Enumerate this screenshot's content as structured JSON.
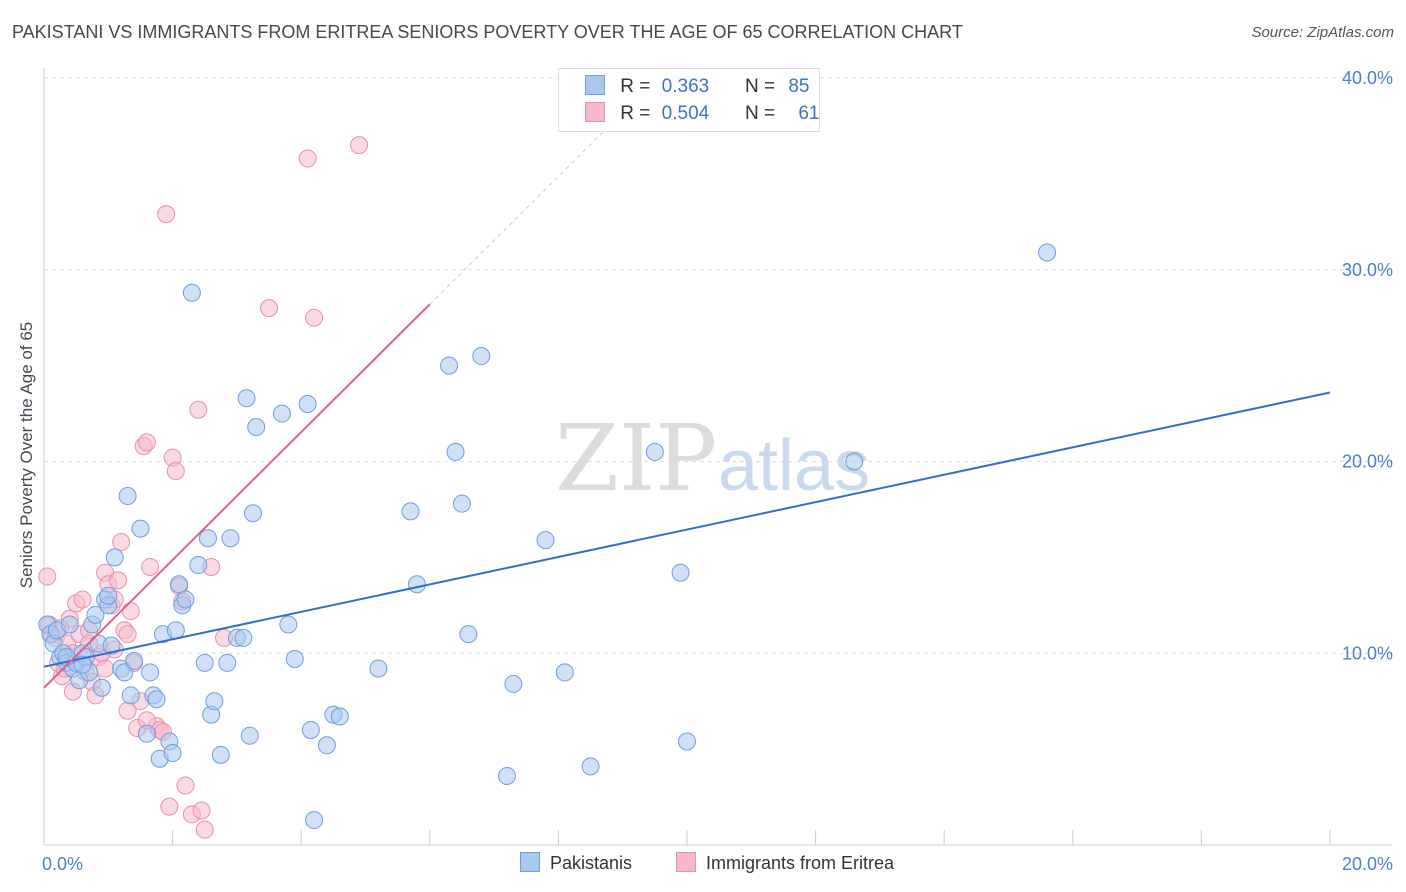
{
  "title": "PAKISTANI VS IMMIGRANTS FROM ERITREA SENIORS POVERTY OVER THE AGE OF 65 CORRELATION CHART",
  "source": "Source: ZipAtlas.com",
  "watermark": {
    "zip": "ZIP",
    "atlas": "atlas"
  },
  "colors": {
    "blue_fill": "#a9c8f0",
    "blue_stroke": "#6d9ee0",
    "blue_line": "#2f6fd0",
    "pink_fill": "#f6b9cc",
    "pink_stroke": "#e890aa",
    "pink_line": "#e0608a",
    "grid": "#dddddd",
    "tick_text": "#4a7fcf"
  },
  "legend": {
    "rows": [
      {
        "r_label": "R =",
        "r_value": "0.363",
        "n_label": "N =",
        "n_value": "85"
      },
      {
        "r_label": "R =",
        "r_value": "0.504",
        "n_label": "N =",
        "n_value": "61"
      }
    ]
  },
  "bottom_legend": {
    "series1": "Pakistanis",
    "series2": "Immigrants from Eritrea"
  },
  "chart_data": {
    "type": "scatter",
    "title": "PAKISTANI VS IMMIGRANTS FROM ERITREA SENIORS POVERTY OVER THE AGE OF 65 CORRELATION CHART",
    "xlabel": "",
    "ylabel": "Seniors Poverty Over the Age of 65",
    "xlim": [
      0,
      20
    ],
    "ylim": [
      0,
      40
    ],
    "x_tick_labels": [
      "0.0%",
      "20.0%"
    ],
    "y_ticks": [
      10,
      20,
      30,
      40
    ],
    "y_tick_labels": [
      "10.0%",
      "20.0%",
      "30.0%",
      "40.0%"
    ],
    "series": [
      {
        "name": "Pakistanis",
        "r": 0.363,
        "n": 85,
        "trend": {
          "x": [
            0,
            20
          ],
          "y": [
            9.3,
            23.6
          ]
        },
        "points": [
          [
            0.05,
            11.5
          ],
          [
            0.1,
            11.0
          ],
          [
            0.15,
            10.5
          ],
          [
            0.2,
            11.2
          ],
          [
            0.25,
            9.8
          ],
          [
            0.3,
            10.0
          ],
          [
            0.35,
            9.5
          ],
          [
            0.4,
            11.5
          ],
          [
            0.45,
            9.2
          ],
          [
            0.5,
            9.5
          ],
          [
            0.55,
            8.6
          ],
          [
            0.6,
            10.0
          ],
          [
            0.65,
            9.8
          ],
          [
            0.7,
            9.0
          ],
          [
            0.75,
            11.5
          ],
          [
            0.8,
            12.0
          ],
          [
            0.85,
            10.5
          ],
          [
            0.9,
            8.2
          ],
          [
            0.95,
            12.8
          ],
          [
            1.0,
            12.5
          ],
          [
            1.05,
            10.4
          ],
          [
            1.1,
            15.0
          ],
          [
            1.2,
            9.2
          ],
          [
            1.25,
            9.0
          ],
          [
            1.3,
            18.2
          ],
          [
            1.35,
            7.8
          ],
          [
            1.4,
            9.6
          ],
          [
            1.5,
            16.5
          ],
          [
            1.6,
            5.8
          ],
          [
            1.65,
            9.0
          ],
          [
            1.7,
            7.8
          ],
          [
            1.75,
            7.6
          ],
          [
            1.8,
            4.5
          ],
          [
            1.85,
            11.0
          ],
          [
            1.95,
            5.4
          ],
          [
            2.0,
            4.8
          ],
          [
            2.05,
            11.2
          ],
          [
            2.1,
            13.6
          ],
          [
            2.15,
            12.5
          ],
          [
            2.2,
            12.8
          ],
          [
            2.3,
            28.8
          ],
          [
            2.4,
            14.6
          ],
          [
            2.5,
            9.5
          ],
          [
            2.55,
            16.0
          ],
          [
            2.6,
            6.8
          ],
          [
            2.65,
            7.5
          ],
          [
            2.75,
            4.7
          ],
          [
            2.85,
            9.5
          ],
          [
            2.9,
            16.0
          ],
          [
            3.0,
            10.8
          ],
          [
            3.1,
            10.8
          ],
          [
            3.15,
            23.3
          ],
          [
            3.2,
            5.7
          ],
          [
            3.25,
            17.3
          ],
          [
            3.3,
            21.8
          ],
          [
            3.7,
            22.5
          ],
          [
            3.8,
            11.5
          ],
          [
            3.9,
            9.7
          ],
          [
            4.1,
            23.0
          ],
          [
            4.15,
            6.0
          ],
          [
            4.4,
            5.2
          ],
          [
            4.5,
            6.8
          ],
          [
            4.6,
            6.7
          ],
          [
            5.2,
            9.2
          ],
          [
            5.7,
            17.4
          ],
          [
            5.8,
            13.6
          ],
          [
            6.3,
            25.0
          ],
          [
            6.4,
            20.5
          ],
          [
            6.5,
            17.8
          ],
          [
            6.6,
            11.0
          ],
          [
            6.8,
            25.5
          ],
          [
            7.2,
            3.6
          ],
          [
            7.3,
            8.4
          ],
          [
            7.8,
            15.9
          ],
          [
            8.1,
            9.0
          ],
          [
            8.5,
            4.1
          ],
          [
            9.5,
            20.5
          ],
          [
            9.9,
            14.2
          ],
          [
            10.0,
            5.4
          ],
          [
            12.6,
            20.0
          ],
          [
            15.6,
            30.9
          ],
          [
            4.2,
            1.3
          ],
          [
            0.35,
            9.8
          ],
          [
            0.6,
            9.4
          ],
          [
            1.0,
            13.0
          ]
        ]
      },
      {
        "name": "Immigrants from Eritrea",
        "r": 0.504,
        "n": 61,
        "trend": {
          "x": [
            0,
            6.0
          ],
          "y": [
            8.2,
            28.2
          ]
        },
        "points": [
          [
            0.05,
            14.0
          ],
          [
            0.08,
            11.5
          ],
          [
            0.12,
            11.0
          ],
          [
            0.18,
            10.8
          ],
          [
            0.22,
            9.5
          ],
          [
            0.28,
            8.8
          ],
          [
            0.32,
            9.2
          ],
          [
            0.36,
            10.5
          ],
          [
            0.4,
            11.8
          ],
          [
            0.45,
            10.0
          ],
          [
            0.5,
            12.6
          ],
          [
            0.55,
            11.0
          ],
          [
            0.6,
            12.8
          ],
          [
            0.65,
            9.0
          ],
          [
            0.7,
            11.2
          ],
          [
            0.75,
            8.5
          ],
          [
            0.8,
            7.8
          ],
          [
            0.85,
            9.8
          ],
          [
            0.9,
            10.0
          ],
          [
            0.95,
            14.2
          ],
          [
            1.0,
            13.6
          ],
          [
            1.05,
            12.5
          ],
          [
            1.1,
            10.2
          ],
          [
            1.15,
            13.8
          ],
          [
            1.2,
            15.8
          ],
          [
            1.25,
            11.2
          ],
          [
            1.3,
            7.0
          ],
          [
            1.35,
            12.2
          ],
          [
            1.4,
            9.5
          ],
          [
            1.45,
            6.1
          ],
          [
            1.5,
            7.5
          ],
          [
            1.55,
            20.8
          ],
          [
            1.6,
            21.0
          ],
          [
            1.65,
            14.5
          ],
          [
            1.75,
            6.2
          ],
          [
            1.8,
            6.0
          ],
          [
            1.9,
            32.9
          ],
          [
            2.0,
            20.2
          ],
          [
            2.05,
            19.5
          ],
          [
            2.1,
            13.5
          ],
          [
            2.15,
            12.7
          ],
          [
            2.2,
            3.1
          ],
          [
            2.3,
            1.6
          ],
          [
            2.4,
            22.7
          ],
          [
            2.45,
            1.8
          ],
          [
            2.6,
            14.5
          ],
          [
            2.8,
            10.8
          ],
          [
            3.5,
            28.0
          ],
          [
            4.1,
            35.8
          ],
          [
            4.2,
            27.5
          ],
          [
            4.9,
            36.5
          ],
          [
            1.95,
            2.0
          ],
          [
            2.5,
            0.8
          ],
          [
            0.25,
            11.3
          ],
          [
            0.45,
            8.0
          ],
          [
            0.7,
            10.5
          ],
          [
            0.95,
            9.2
          ],
          [
            1.1,
            12.8
          ],
          [
            1.3,
            11.0
          ],
          [
            1.6,
            6.5
          ],
          [
            1.85,
            5.9
          ]
        ]
      }
    ]
  }
}
